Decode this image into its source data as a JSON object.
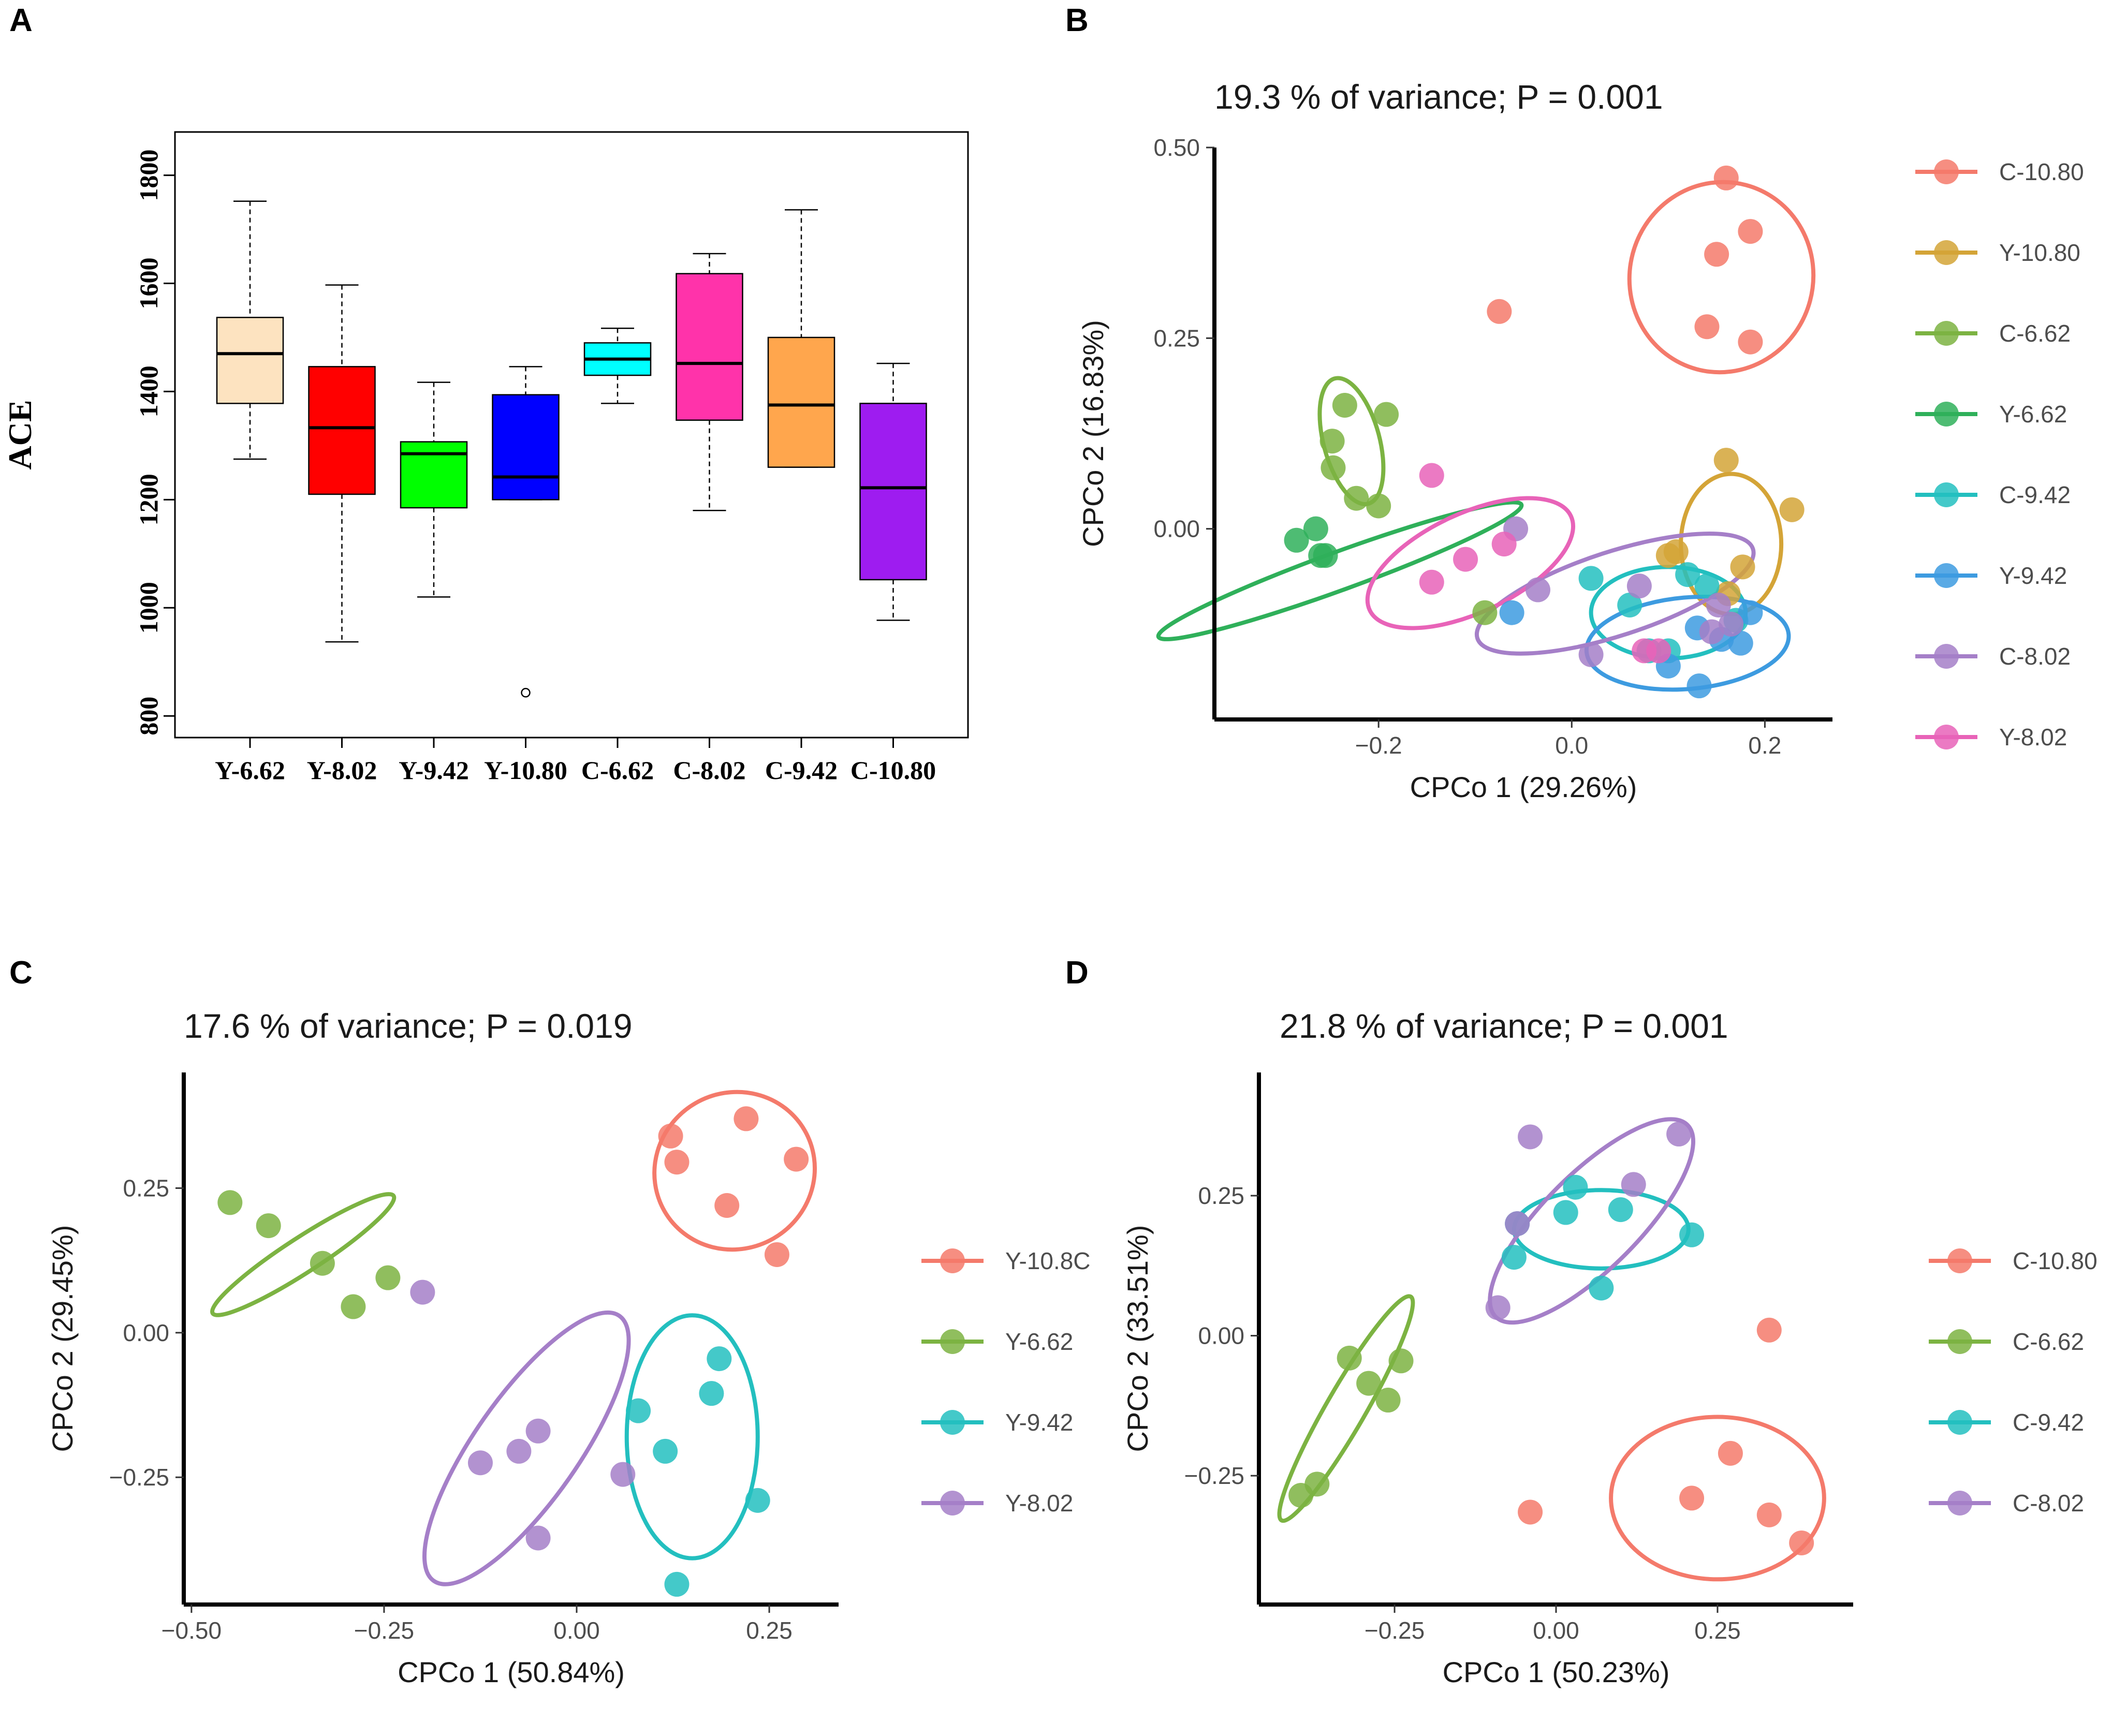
{
  "chart_data": [
    {
      "panel": "A",
      "type": "box",
      "title": "",
      "xlabel": "",
      "ylabel": "ACE",
      "ylim": [
        760,
        1880
      ],
      "yticks": [
        800,
        1000,
        1200,
        1400,
        1600,
        1800
      ],
      "categories": [
        "Y-6.62",
        "Y-8.02",
        "Y-9.42",
        "Y-10.80",
        "C-6.62",
        "C-8.02",
        "C-9.42",
        "C-10.80"
      ],
      "colors": [
        "#fde3c0",
        "#ff0000",
        "#00ff00",
        "#0000ff",
        "#00ffff",
        "#ff33aa",
        "#ffa64d",
        "#9e1cf0"
      ],
      "boxes": [
        {
          "min": 1275,
          "q1": 1378,
          "median": 1470,
          "q3": 1537,
          "max": 1752,
          "outliers": []
        },
        {
          "min": 937,
          "q1": 1210,
          "median": 1333,
          "q3": 1446,
          "max": 1597,
          "outliers": []
        },
        {
          "min": 1020,
          "q1": 1185,
          "median": 1285,
          "q3": 1307,
          "max": 1417,
          "outliers": []
        },
        {
          "min": 1200,
          "q1": 1200,
          "median": 1242,
          "q3": 1394,
          "max": 1446,
          "outliers": [
            843
          ]
        },
        {
          "min": 1378,
          "q1": 1430,
          "median": 1460,
          "q3": 1490,
          "max": 1517,
          "outliers": []
        },
        {
          "min": 1180,
          "q1": 1347,
          "median": 1452,
          "q3": 1618,
          "max": 1655,
          "outliers": []
        },
        {
          "min": 1260,
          "q1": 1260,
          "median": 1375,
          "q3": 1500,
          "max": 1736,
          "outliers": []
        },
        {
          "min": 977,
          "q1": 1052,
          "median": 1222,
          "q3": 1378,
          "max": 1452,
          "outliers": []
        }
      ]
    },
    {
      "panel": "B",
      "type": "scatter",
      "title": "19.3 % of variance; P = 0.001",
      "xlabel": "CPCo 1 (29.26%)",
      "ylabel": "CPCo 2 (16.83%)",
      "xlim": [
        -0.37,
        0.27
      ],
      "ylim": [
        -0.25,
        0.5
      ],
      "xticks": [
        -0.2,
        0.0,
        0.2
      ],
      "xtick_labels": [
        "−0.2",
        "0.0",
        "0.2"
      ],
      "yticks": [
        0.0,
        0.25,
        0.5
      ],
      "ytick_labels": [
        "0.00",
        "0.25",
        "0.50"
      ],
      "legend_position": "right",
      "series": [
        {
          "name": "C-10.80",
          "color": "#f47a6b",
          "points": [
            [
              0.16,
              0.46
            ],
            [
              0.185,
              0.39
            ],
            [
              0.15,
              0.36
            ],
            [
              0.14,
              0.265
            ],
            [
              0.185,
              0.245
            ],
            [
              -0.075,
              0.285
            ]
          ],
          "ellipse": {
            "cx": 0.155,
            "cy": 0.33,
            "rx": 0.095,
            "ry": 0.125,
            "angle": 15
          }
        },
        {
          "name": "Y-10.80",
          "color": "#d4a437",
          "points": [
            [
              0.16,
              0.09
            ],
            [
              0.228,
              0.025
            ],
            [
              0.108,
              -0.03
            ],
            [
              0.1,
              -0.035
            ],
            [
              0.177,
              -0.05
            ],
            [
              0.162,
              -0.085
            ]
          ],
          "ellipse": {
            "cx": 0.165,
            "cy": -0.02,
            "rx": 0.052,
            "ry": 0.092,
            "angle": 0
          }
        },
        {
          "name": "C-6.62",
          "color": "#7cb342",
          "points": [
            [
              -0.235,
              0.162
            ],
            [
              -0.192,
              0.15
            ],
            [
              -0.248,
              0.115
            ],
            [
              -0.247,
              0.08
            ],
            [
              -0.223,
              0.04
            ],
            [
              -0.2,
              0.03
            ],
            [
              -0.09,
              -0.11
            ]
          ],
          "ellipse": {
            "cx": -0.228,
            "cy": 0.115,
            "rx": 0.029,
            "ry": 0.085,
            "angle": -15
          }
        },
        {
          "name": "Y-6.62",
          "color": "#2fb05a",
          "points": [
            [
              -0.265,
              0.0
            ],
            [
              -0.285,
              -0.015
            ],
            [
              -0.26,
              -0.035
            ],
            [
              -0.255,
              -0.035
            ]
          ],
          "ellipse": {
            "cx": -0.24,
            "cy": -0.055,
            "rx": 0.2,
            "ry": 0.025,
            "angle": -20
          }
        },
        {
          "name": "C-9.42",
          "color": "#23bfbf",
          "points": [
            [
              0.02,
              -0.065
            ],
            [
              0.06,
              -0.1
            ],
            [
              0.08,
              -0.16
            ],
            [
              0.1,
              -0.16
            ],
            [
              0.14,
              -0.075
            ],
            [
              0.12,
              -0.06
            ],
            [
              0.17,
              -0.12
            ]
          ],
          "ellipse": {
            "cx": 0.1,
            "cy": -0.11,
            "rx": 0.08,
            "ry": 0.06,
            "angle": 0
          }
        },
        {
          "name": "Y-9.42",
          "color": "#3d9be0",
          "points": [
            [
              -0.062,
              -0.11
            ],
            [
              0.13,
              -0.13
            ],
            [
              0.175,
              -0.15
            ],
            [
              0.185,
              -0.11
            ],
            [
              0.1,
              -0.18
            ],
            [
              0.132,
              -0.206
            ],
            [
              0.155,
              -0.145
            ]
          ],
          "ellipse": {
            "cx": 0.12,
            "cy": -0.15,
            "rx": 0.105,
            "ry": 0.06,
            "angle": -5
          }
        },
        {
          "name": "C-8.02",
          "color": "#a57fc8",
          "points": [
            [
              -0.058,
              -0.0
            ],
            [
              -0.035,
              -0.08
            ],
            [
              0.02,
              -0.165
            ],
            [
              0.07,
              -0.075
            ],
            [
              0.145,
              -0.135
            ],
            [
              0.165,
              -0.125
            ],
            [
              0.152,
              -0.1
            ]
          ],
          "ellipse": {
            "cx": 0.045,
            "cy": -0.085,
            "rx": 0.15,
            "ry": 0.055,
            "angle": -18
          }
        },
        {
          "name": "Y-8.02",
          "color": "#e863b8",
          "points": [
            [
              -0.145,
              0.07
            ],
            [
              -0.07,
              -0.02
            ],
            [
              -0.11,
              -0.04
            ],
            [
              -0.145,
              -0.07
            ],
            [
              0.075,
              -0.16
            ],
            [
              0.09,
              -0.16
            ]
          ],
          "ellipse": {
            "cx": -0.105,
            "cy": -0.045,
            "rx": 0.115,
            "ry": 0.065,
            "angle": -25
          }
        }
      ]
    },
    {
      "panel": "C",
      "type": "scatter",
      "title": "17.6 % of variance; P = 0.019",
      "xlabel": "CPCo 1 (50.84%)",
      "ylabel": "CPCo 2 (29.45%)",
      "xlim": [
        -0.51,
        0.34
      ],
      "ylim": [
        -0.47,
        0.45
      ],
      "xticks": [
        -0.5,
        -0.25,
        0.0,
        0.25
      ],
      "xtick_labels": [
        "−0.50",
        "−0.25",
        "0.00",
        "0.25"
      ],
      "yticks": [
        -0.25,
        0.0,
        0.25
      ],
      "ytick_labels": [
        "−0.25",
        "0.00",
        "0.25"
      ],
      "legend_position": "right",
      "series": [
        {
          "name": "Y-10.8C",
          "color": "#f47a6b",
          "points": [
            [
              0.22,
              0.37
            ],
            [
              0.285,
              0.3
            ],
            [
              0.122,
              0.34
            ],
            [
              0.13,
              0.295
            ],
            [
              0.195,
              0.22
            ],
            [
              0.26,
              0.135
            ]
          ],
          "ellipse": {
            "cx": 0.205,
            "cy": 0.28,
            "rx": 0.105,
            "ry": 0.135,
            "angle": -30
          }
        },
        {
          "name": "Y-6.62",
          "color": "#7cb342",
          "points": [
            [
              -0.45,
              0.225
            ],
            [
              -0.4,
              0.185
            ],
            [
              -0.33,
              0.12
            ],
            [
              -0.245,
              0.095
            ],
            [
              -0.29,
              0.045
            ]
          ],
          "ellipse": {
            "cx": -0.355,
            "cy": 0.135,
            "rx": 0.14,
            "ry": 0.03,
            "angle": -33
          }
        },
        {
          "name": "Y-9.42",
          "color": "#23bfbf",
          "points": [
            [
              0.185,
              -0.045
            ],
            [
              0.175,
              -0.105
            ],
            [
              0.08,
              -0.135
            ],
            [
              0.115,
              -0.205
            ],
            [
              0.235,
              -0.29
            ],
            [
              0.13,
              -0.435
            ]
          ],
          "ellipse": {
            "cx": 0.15,
            "cy": -0.18,
            "rx": 0.085,
            "ry": 0.21,
            "angle": 0
          }
        },
        {
          "name": "Y-8.02",
          "color": "#a57fc8",
          "points": [
            [
              -0.2,
              0.07
            ],
            [
              -0.05,
              -0.17
            ],
            [
              -0.075,
              -0.205
            ],
            [
              -0.125,
              -0.225
            ],
            [
              0.06,
              -0.245
            ],
            [
              -0.05,
              -0.355
            ]
          ],
          "ellipse": {
            "cx": -0.065,
            "cy": -0.2,
            "rx": 0.21,
            "ry": 0.09,
            "angle": -55
          }
        }
      ]
    },
    {
      "panel": "D",
      "type": "scatter",
      "title": "21.8 % of variance; P = 0.001",
      "xlabel": "CPCo 1 (50.23%)",
      "ylabel": "CPCo 2 (33.51%)",
      "xlim": [
        -0.46,
        0.46
      ],
      "ylim": [
        -0.48,
        0.47
      ],
      "xticks": [
        -0.25,
        0.0,
        0.25
      ],
      "xtick_labels": [
        "−0.25",
        "0.00",
        "0.25"
      ],
      "yticks": [
        -0.25,
        0.0,
        0.25
      ],
      "ytick_labels": [
        "−0.25",
        "0.00",
        "0.25"
      ],
      "legend_position": "right",
      "series": [
        {
          "name": "C-10.80",
          "color": "#f47a6b",
          "points": [
            [
              0.33,
              0.01
            ],
            [
              0.27,
              -0.21
            ],
            [
              0.21,
              -0.29
            ],
            [
              0.33,
              -0.32
            ],
            [
              0.38,
              -0.37
            ],
            [
              -0.04,
              -0.315
            ]
          ],
          "ellipse": {
            "cx": 0.25,
            "cy": -0.29,
            "rx": 0.165,
            "ry": 0.145,
            "angle": 0
          }
        },
        {
          "name": "C-6.62",
          "color": "#7cb342",
          "points": [
            [
              -0.32,
              -0.04
            ],
            [
              -0.24,
              -0.045
            ],
            [
              -0.29,
              -0.085
            ],
            [
              -0.26,
              -0.115
            ],
            [
              -0.37,
              -0.265
            ],
            [
              -0.395,
              -0.285
            ]
          ],
          "ellipse": {
            "cx": -0.325,
            "cy": -0.13,
            "rx": 0.2,
            "ry": 0.035,
            "angle": -60
          }
        },
        {
          "name": "C-9.42",
          "color": "#23bfbf",
          "points": [
            [
              0.03,
              0.265
            ],
            [
              0.015,
              0.22
            ],
            [
              0.1,
              0.225
            ],
            [
              -0.06,
              0.2
            ],
            [
              -0.065,
              0.14
            ],
            [
              0.21,
              0.18
            ],
            [
              0.07,
              0.085
            ]
          ],
          "ellipse": {
            "cx": 0.07,
            "cy": 0.19,
            "rx": 0.135,
            "ry": 0.07,
            "angle": 0
          }
        },
        {
          "name": "C-8.02",
          "color": "#a57fc8",
          "points": [
            [
              -0.04,
              0.355
            ],
            [
              0.19,
              0.36
            ],
            [
              0.12,
              0.27
            ],
            [
              -0.06,
              0.2
            ],
            [
              -0.09,
              0.05
            ]
          ],
          "ellipse": {
            "cx": 0.055,
            "cy": 0.205,
            "rx": 0.21,
            "ry": 0.085,
            "angle": -45
          }
        }
      ]
    }
  ],
  "panels": {
    "a": "A",
    "b": "B",
    "c": "C",
    "d": "D"
  }
}
